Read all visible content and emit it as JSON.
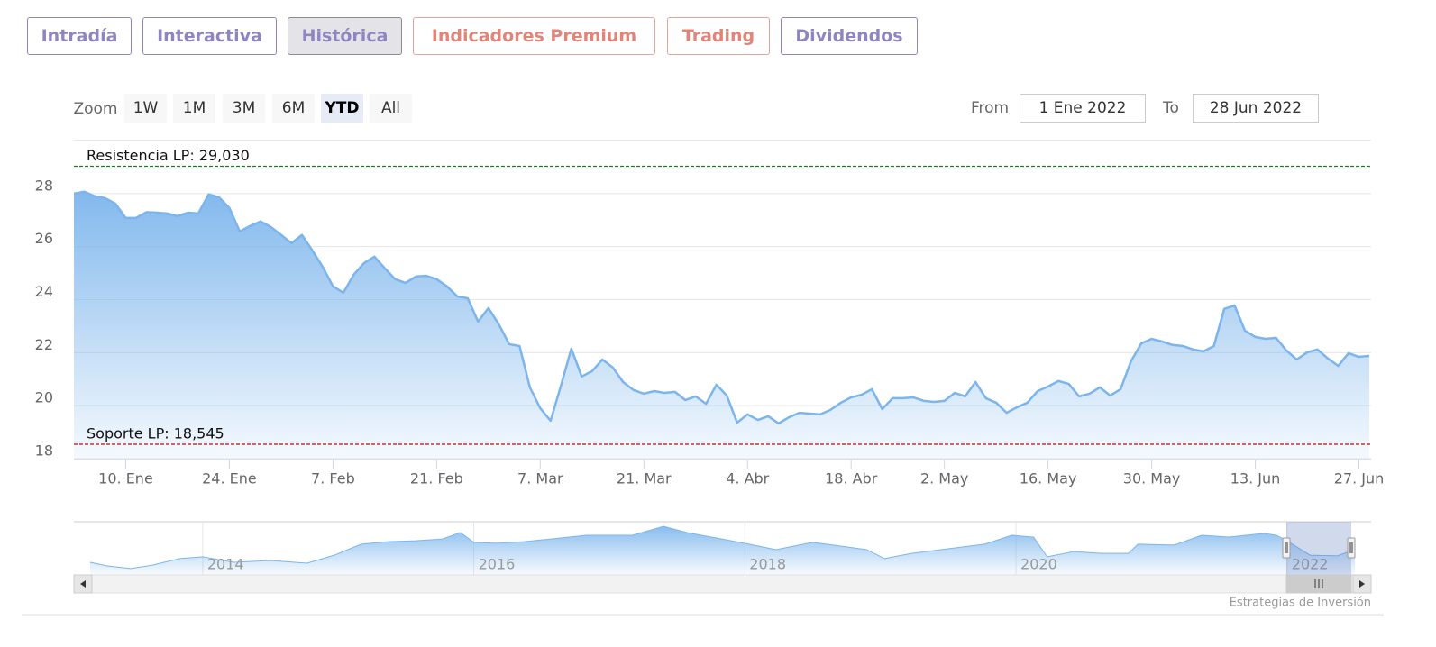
{
  "tabs": [
    "Intradía",
    "Interactiva",
    "Histórica",
    "Indicadores Premium",
    "Trading",
    "Dividendos"
  ],
  "range_selector": {
    "zoom_label": "Zoom",
    "buttons": [
      "1W",
      "1M",
      "3M",
      "6M",
      "YTD",
      "All"
    ],
    "from_label": "From",
    "from": "1 Ene 2022",
    "to_label": "To",
    "to": "28 Jun 2022"
  },
  "chart_data": [
    {
      "type": "area",
      "color": "#7cb5ec",
      "categories": [
        null,
        null,
        null,
        null,
        null,
        "10. Ene",
        null,
        null,
        null,
        null,
        null,
        null,
        null,
        null,
        null,
        "24. Ene",
        null,
        null,
        null,
        null,
        null,
        null,
        null,
        null,
        null,
        "7. Feb",
        null,
        null,
        null,
        null,
        null,
        null,
        null,
        null,
        null,
        "21. Feb",
        null,
        null,
        null,
        null,
        null,
        null,
        null,
        null,
        null,
        "7. Mar",
        null,
        null,
        null,
        null,
        null,
        null,
        null,
        null,
        null,
        "21. Mar",
        null,
        null,
        null,
        null,
        null,
        null,
        null,
        null,
        null,
        "4. Abr",
        null,
        null,
        null,
        null,
        null,
        null,
        null,
        null,
        null,
        "18. Abr",
        null,
        null,
        null,
        null,
        null,
        null,
        null,
        null,
        "2. May",
        null,
        null,
        null,
        null,
        null,
        null,
        null,
        null,
        null,
        "16. May",
        null,
        null,
        null,
        null,
        null,
        null,
        null,
        null,
        null,
        "30. May",
        null,
        null,
        null,
        null,
        null,
        null,
        null,
        null,
        null,
        "13. Jun",
        null,
        null,
        null,
        null,
        null,
        null,
        null,
        null,
        null,
        "27. Jun",
        null
      ],
      "values": [
        28.0,
        28.07,
        27.9,
        27.83,
        27.62,
        27.08,
        27.08,
        27.3,
        27.28,
        27.25,
        27.15,
        27.28,
        27.25,
        27.97,
        27.86,
        27.46,
        26.57,
        26.78,
        26.95,
        26.74,
        26.44,
        26.13,
        26.44,
        25.86,
        25.24,
        24.5,
        24.26,
        24.94,
        25.38,
        25.62,
        25.18,
        24.77,
        24.63,
        24.87,
        24.9,
        24.77,
        24.5,
        24.12,
        24.05,
        23.17,
        23.68,
        23.07,
        22.32,
        22.25,
        20.69,
        19.9,
        19.43,
        20.76,
        22.15,
        21.1,
        21.3,
        21.74,
        21.44,
        20.89,
        20.59,
        20.45,
        20.55,
        20.48,
        20.52,
        20.21,
        20.35,
        20.07,
        20.79,
        20.38,
        19.36,
        19.67,
        19.46,
        19.6,
        19.33,
        19.56,
        19.73,
        19.7,
        19.67,
        19.84,
        20.11,
        20.31,
        20.41,
        20.62,
        19.87,
        20.28,
        20.28,
        20.31,
        20.18,
        20.14,
        20.18,
        20.48,
        20.35,
        20.89,
        20.28,
        20.11,
        19.73,
        19.94,
        20.11,
        20.55,
        20.72,
        20.93,
        20.82,
        20.35,
        20.45,
        20.69,
        20.38,
        20.62,
        21.67,
        22.35,
        22.52,
        22.42,
        22.29,
        22.25,
        22.12,
        22.05,
        22.25,
        23.65,
        23.78,
        22.83,
        22.59,
        22.52,
        22.56,
        22.08,
        21.74,
        22.01,
        22.12,
        21.78,
        21.5,
        21.98,
        21.84,
        21.88
      ],
      "ylim": [
        18,
        30
      ],
      "yticks": [
        18,
        20,
        22,
        24,
        26,
        28
      ],
      "grid": true,
      "plot_lines": [
        {
          "label": "Resistencia LP: 29,030",
          "value": 29.03,
          "color": "#1e7b1e"
        },
        {
          "label": "Soporte LP: 18,545",
          "value": 18.545,
          "color": "#b01010"
        }
      ]
    },
    {
      "type": "area",
      "color": "#7cb5ec",
      "x": [
        2013.17,
        2013.3,
        2013.47,
        2013.63,
        2013.83,
        2014.0,
        2014.23,
        2014.5,
        2014.77,
        2014.97,
        2015.17,
        2015.37,
        2015.57,
        2015.77,
        2015.9,
        2016.0,
        2016.17,
        2016.37,
        2016.57,
        2016.83,
        2017.17,
        2017.4,
        2017.57,
        2017.83,
        2018.03,
        2018.23,
        2018.5,
        2018.7,
        2018.9,
        2019.03,
        2019.23,
        2019.5,
        2019.77,
        2019.97,
        2020.13,
        2020.23,
        2020.43,
        2020.63,
        2020.83,
        2020.9,
        2021.17,
        2021.37,
        2021.57,
        2021.83,
        2021.92,
        2022.0,
        2022.17,
        2022.37,
        2022.5
      ],
      "values": [
        20.1,
        18.9,
        18.1,
        19.2,
        21.3,
        21.9,
        20.1,
        20.7,
        19.8,
        22.4,
        26.0,
        26.8,
        27.1,
        27.7,
        29.8,
        26.6,
        26.3,
        26.8,
        27.7,
        28.9,
        28.9,
        31.8,
        29.8,
        27.7,
        26.0,
        24.2,
        26.6,
        25.4,
        24.2,
        21.3,
        23.0,
        24.5,
        26.0,
        28.9,
        28.3,
        21.9,
        23.6,
        23.0,
        23.0,
        26.0,
        25.7,
        28.9,
        28.3,
        29.5,
        28.9,
        27.1,
        22.4,
        22.2,
        24.2
      ],
      "xlim": [
        2013.05,
        2022.62
      ],
      "xticks": [
        2014,
        2016,
        2018,
        2020,
        2022
      ],
      "ylim": [
        16,
        33
      ]
    }
  ],
  "credits": "Estrategias de Inversión"
}
